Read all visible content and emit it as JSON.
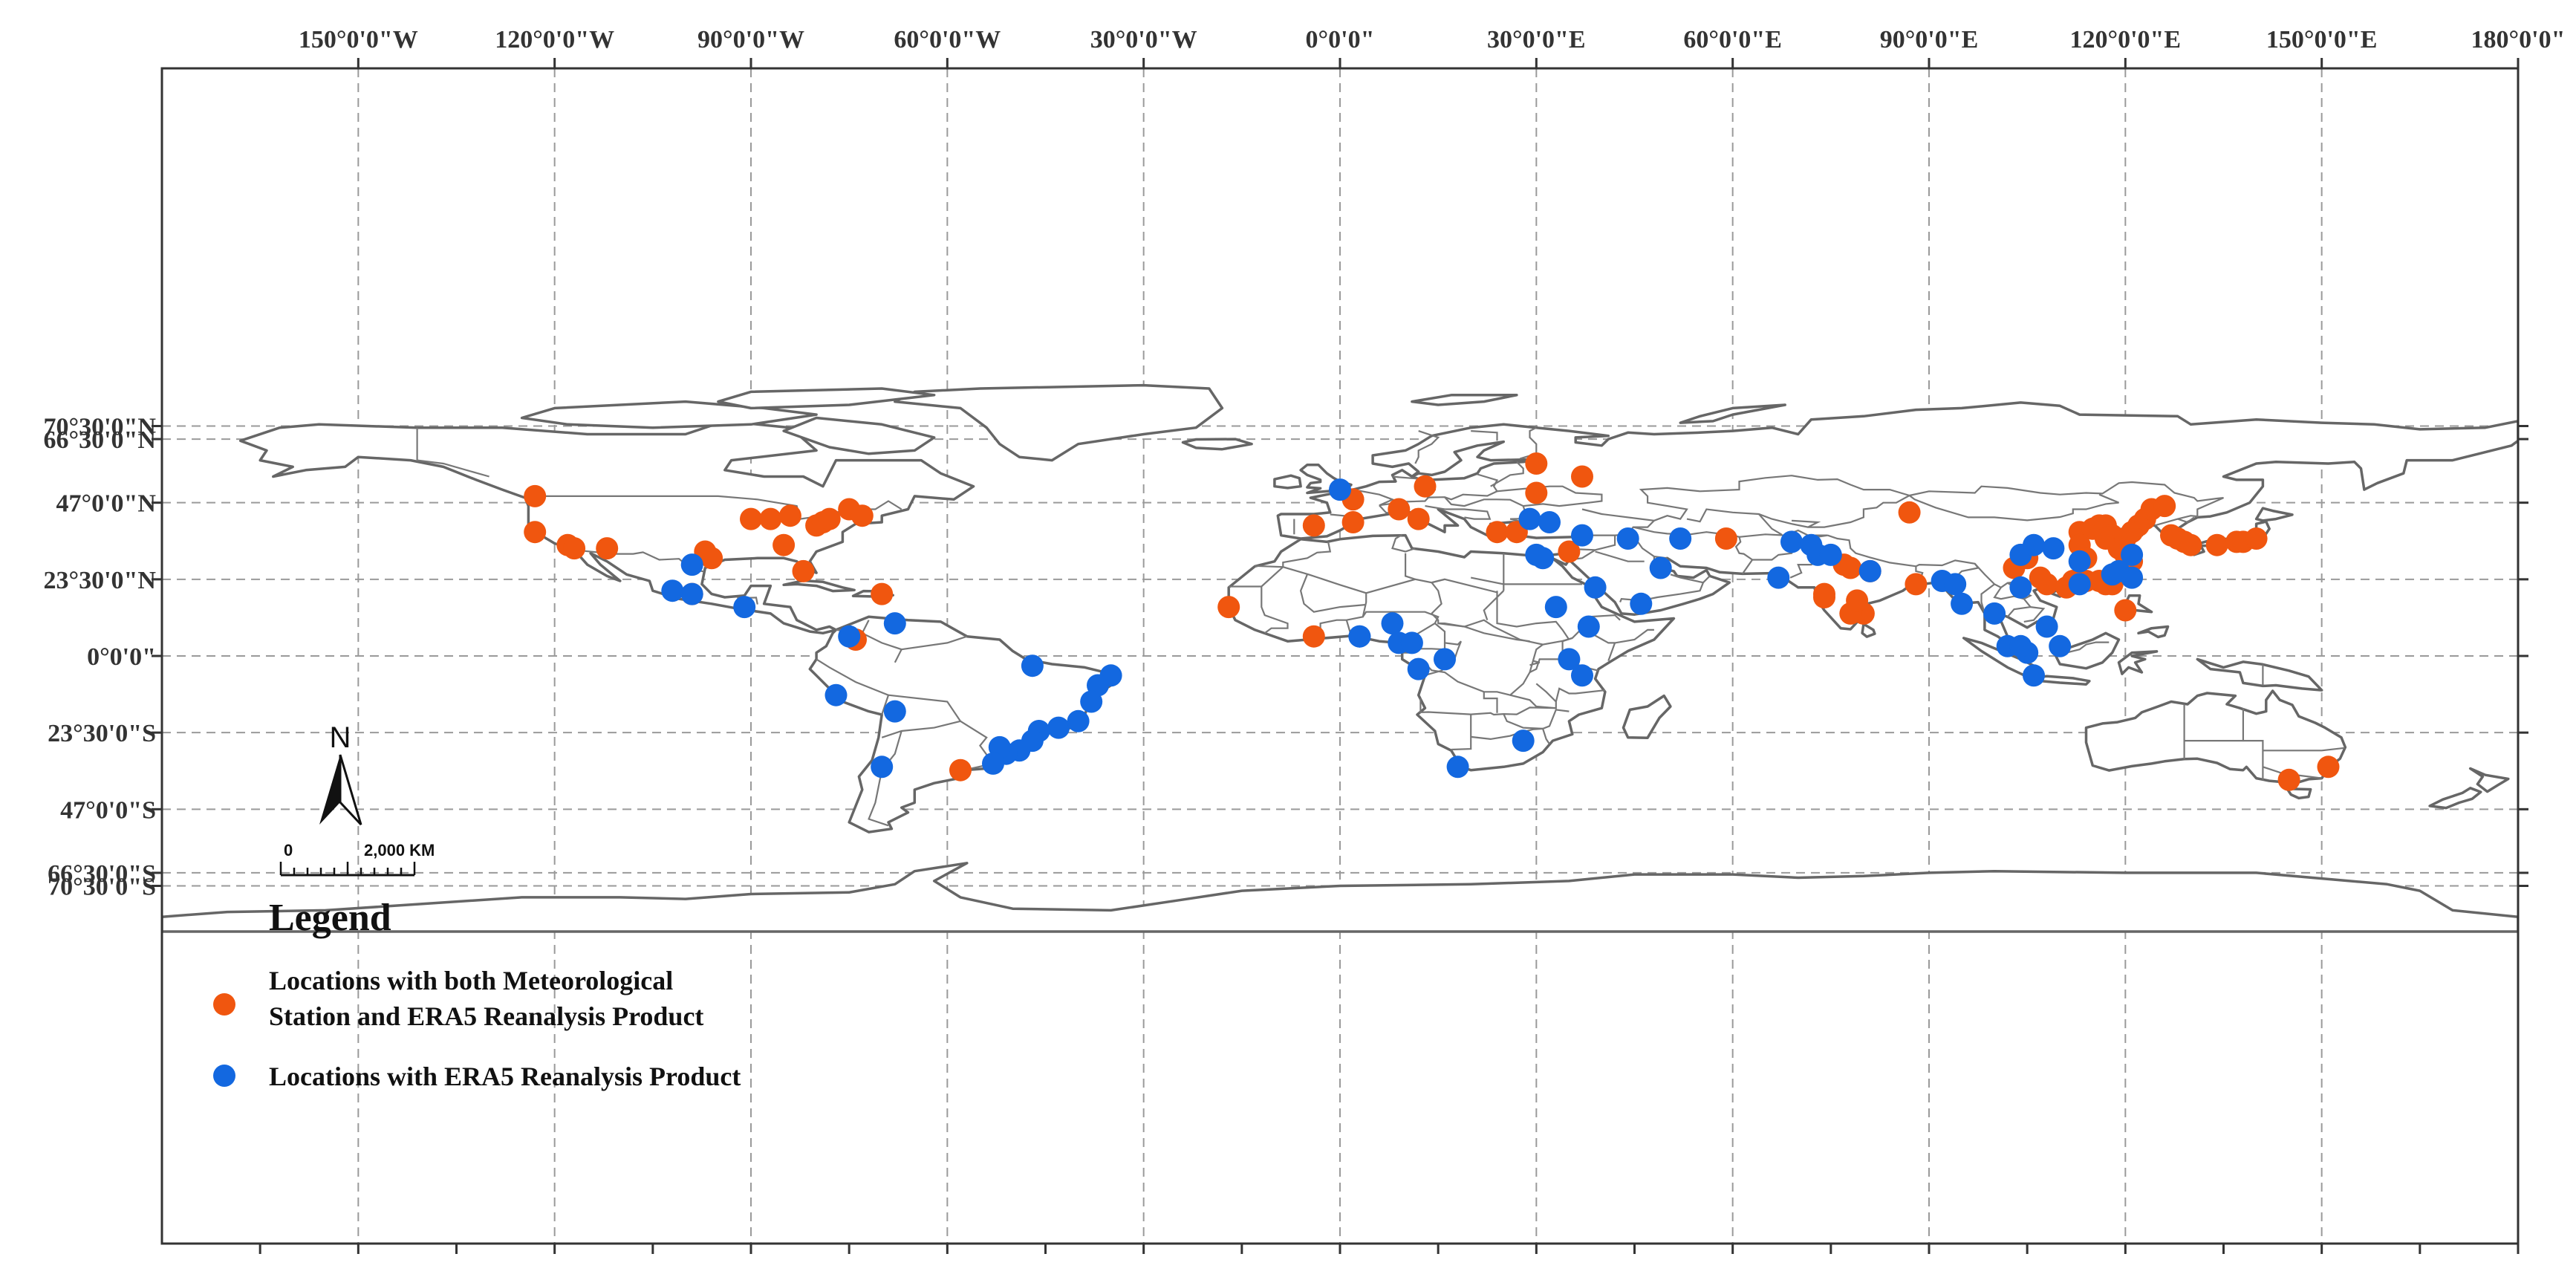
{
  "map": {
    "top_axis_labels": [
      {
        "lon": -150,
        "text": "150°0'0\"W"
      },
      {
        "lon": -120,
        "text": "120°0'0\"W"
      },
      {
        "lon": -90,
        "text": "90°0'0\"W"
      },
      {
        "lon": -60,
        "text": "60°0'0\"W"
      },
      {
        "lon": -30,
        "text": "30°0'0\"W"
      },
      {
        "lon": 0,
        "text": "0°0'0\""
      },
      {
        "lon": 30,
        "text": "30°0'0\"E"
      },
      {
        "lon": 60,
        "text": "60°0'0\"E"
      },
      {
        "lon": 90,
        "text": "90°0'0\"E"
      },
      {
        "lon": 120,
        "text": "120°0'0\"E"
      },
      {
        "lon": 150,
        "text": "150°0'0\"E"
      },
      {
        "lon": 180,
        "text": "180°0'0\""
      }
    ],
    "left_axis_labels": [
      {
        "lat": 70.5,
        "text": "70°30'0\"N"
      },
      {
        "lat": 66.5,
        "text": "66°30'0\"N"
      },
      {
        "lat": 47,
        "text": "47°0'0\"N"
      },
      {
        "lat": 23.5,
        "text": "23°30'0\"N"
      },
      {
        "lat": 0,
        "text": "0°0'0\""
      },
      {
        "lat": -23.5,
        "text": "23°30'0\"S"
      },
      {
        "lat": -47,
        "text": "47°0'0\"S"
      },
      {
        "lat": -66.5,
        "text": "66°30'0\"S"
      },
      {
        "lat": -70.5,
        "text": "70°30'0\"S"
      }
    ],
    "north_arrow_label": "N",
    "scale_bar": {
      "start_label": "0",
      "end_label": "2,000 KM"
    },
    "legend": {
      "title": "Legend",
      "items": [
        {
          "lines": [
            "Locations with both Meteorological",
            "Station and ERA5 Reanalysis Product"
          ],
          "color": "#f0560f",
          "symbol": "orange-dot"
        },
        {
          "lines": [
            "Locations with ERA5 Reanalysis Product"
          ],
          "color": "#1368e0",
          "symbol": "blue-dot"
        }
      ]
    },
    "colors": {
      "station_era5": "#f0560f",
      "era5_only": "#1368e0",
      "coastline": "#666666",
      "grid": "#9a9a9a"
    },
    "points_station_era5": [
      [
        -123,
        49
      ],
      [
        -123,
        38
      ],
      [
        -118,
        34
      ],
      [
        -117,
        33
      ],
      [
        -112,
        33
      ],
      [
        -97,
        32
      ],
      [
        -96,
        30
      ],
      [
        -99,
        19
      ],
      [
        -90,
        42
      ],
      [
        -87,
        42
      ],
      [
        -84,
        43
      ],
      [
        -80,
        40
      ],
      [
        -79,
        41
      ],
      [
        -78,
        42
      ],
      [
        -75,
        45
      ],
      [
        -73,
        43
      ],
      [
        -85,
        34
      ],
      [
        -82,
        26
      ],
      [
        -70,
        19
      ],
      [
        -74,
        5
      ],
      [
        -4,
        40
      ],
      [
        2,
        48
      ],
      [
        2,
        41
      ],
      [
        9,
        45
      ],
      [
        12,
        42
      ],
      [
        13,
        52
      ],
      [
        24,
        38
      ],
      [
        27,
        38
      ],
      [
        30,
        59
      ],
      [
        30,
        50
      ],
      [
        37,
        55
      ],
      [
        35,
        32
      ],
      [
        -17,
        15
      ],
      [
        -4,
        6
      ],
      [
        59,
        36
      ],
      [
        87,
        44
      ],
      [
        74,
        19
      ],
      [
        74,
        18
      ],
      [
        77,
        28
      ],
      [
        78,
        27
      ],
      [
        80,
        13
      ],
      [
        78,
        13
      ],
      [
        79,
        17
      ],
      [
        81,
        26
      ],
      [
        88,
        22
      ],
      [
        103,
        27
      ],
      [
        105,
        30
      ],
      [
        107,
        24
      ],
      [
        108,
        22
      ],
      [
        111,
        21
      ],
      [
        112,
        23
      ],
      [
        114,
        23
      ],
      [
        116,
        23
      ],
      [
        117,
        22
      ],
      [
        118,
        22
      ],
      [
        113,
        38
      ],
      [
        113,
        34
      ],
      [
        114,
        30
      ],
      [
        115,
        39
      ],
      [
        116,
        40
      ],
      [
        117,
        40
      ],
      [
        117,
        36
      ],
      [
        118,
        37
      ],
      [
        119,
        33
      ],
      [
        120,
        36
      ],
      [
        120,
        31
      ],
      [
        121,
        29
      ],
      [
        121,
        38
      ],
      [
        122,
        40
      ],
      [
        123,
        42
      ],
      [
        124,
        45
      ],
      [
        126,
        46
      ],
      [
        127,
        37
      ],
      [
        128,
        36
      ],
      [
        129,
        35
      ],
      [
        130,
        34
      ],
      [
        134,
        34
      ],
      [
        137,
        35
      ],
      [
        138,
        35
      ],
      [
        140,
        36
      ],
      [
        120,
        14
      ],
      [
        145,
        -38
      ],
      [
        151,
        -34
      ],
      [
        -58,
        -35
      ]
    ],
    "points_era5_only": [
      [
        -99,
        28
      ],
      [
        -102,
        20
      ],
      [
        -99,
        19
      ],
      [
        -91,
        15
      ],
      [
        -75,
        6
      ],
      [
        -68,
        10
      ],
      [
        0,
        51
      ],
      [
        3,
        6
      ],
      [
        3,
        6
      ],
      [
        8,
        10
      ],
      [
        9,
        4
      ],
      [
        11,
        4
      ],
      [
        12,
        -4
      ],
      [
        16,
        -1
      ],
      [
        28,
        -26
      ],
      [
        18,
        -34
      ],
      [
        29,
        42
      ],
      [
        32,
        41
      ],
      [
        30,
        31
      ],
      [
        31,
        30
      ],
      [
        37,
        37
      ],
      [
        44,
        36
      ],
      [
        52,
        36
      ],
      [
        49,
        27
      ],
      [
        46,
        16
      ],
      [
        33,
        15
      ],
      [
        38,
        9
      ],
      [
        39,
        21
      ],
      [
        35,
        -1
      ],
      [
        37,
        -6
      ],
      [
        69,
        35
      ],
      [
        72,
        34
      ],
      [
        73,
        31
      ],
      [
        75,
        31
      ],
      [
        67,
        24
      ],
      [
        81,
        26
      ],
      [
        92,
        23
      ],
      [
        94,
        22
      ],
      [
        95,
        16
      ],
      [
        104,
        31
      ],
      [
        104,
        21
      ],
      [
        106,
        34
      ],
      [
        109,
        33
      ],
      [
        113,
        29
      ],
      [
        113,
        22
      ],
      [
        118,
        25
      ],
      [
        119,
        26
      ],
      [
        121,
        31
      ],
      [
        121,
        24
      ],
      [
        100,
        13
      ],
      [
        102,
        3
      ],
      [
        105,
        1
      ],
      [
        106,
        -6
      ],
      [
        108,
        9
      ],
      [
        110,
        3
      ],
      [
        104,
        3
      ],
      [
        -35,
        -6
      ],
      [
        -37,
        -9
      ],
      [
        -43,
        -22
      ],
      [
        -46,
        -23
      ],
      [
        -47,
        -26
      ],
      [
        -49,
        -29
      ],
      [
        -51,
        -30
      ],
      [
        -52,
        -28
      ],
      [
        -53,
        -33
      ],
      [
        -68,
        -17
      ],
      [
        -77,
        -12
      ],
      [
        -70,
        -34
      ],
      [
        -47,
        -3
      ],
      [
        -40,
        -20
      ],
      [
        -38,
        -14
      ]
    ]
  }
}
